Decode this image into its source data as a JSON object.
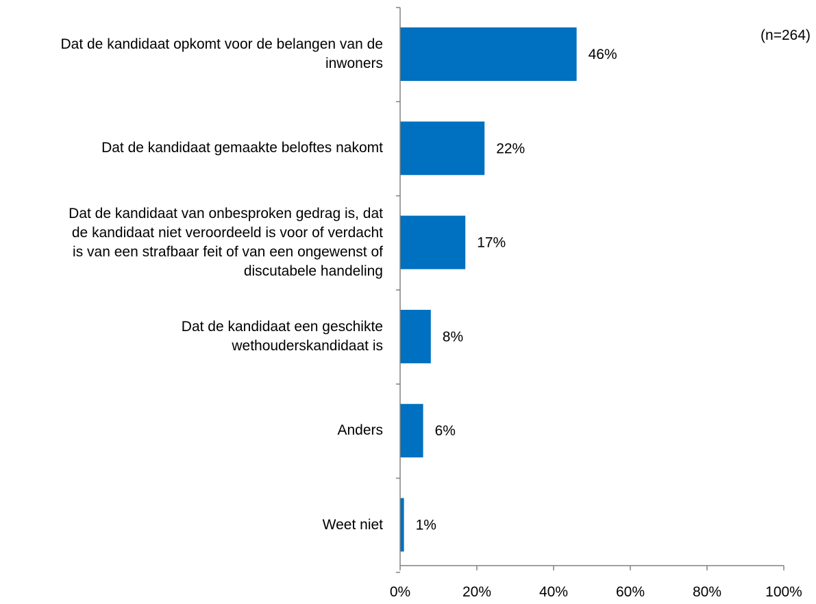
{
  "note": "(n=264)",
  "chart_data": {
    "type": "bar",
    "orientation": "horizontal",
    "categories": [
      [
        "Dat de kandidaat opkomt voor de belangen van de",
        "inwoners"
      ],
      [
        "Dat de kandidaat gemaakte beloftes nakomt"
      ],
      [
        "Dat de kandidaat van onbesproken gedrag is, dat",
        "de kandidaat niet veroordeeld is voor of verdacht",
        "is van een strafbaar feit of van een ongewenst of",
        "discutabele handeling"
      ],
      [
        "Dat de kandidaat een geschikte",
        "wethouderskandidaat is"
      ],
      [
        "Anders"
      ],
      [
        "Weet niet"
      ]
    ],
    "values": [
      46,
      22,
      17,
      8,
      6,
      1
    ],
    "data_labels": [
      "46%",
      "22%",
      "17%",
      "8%",
      "6%",
      "1%"
    ],
    "xlim": [
      0,
      100
    ],
    "xticks": [
      "0%",
      "20%",
      "40%",
      "60%",
      "80%",
      "100%"
    ],
    "title": "",
    "xlabel": "",
    "ylabel": "",
    "bar_color": "#0070C0",
    "axis_color": "#808080",
    "grid": false
  }
}
